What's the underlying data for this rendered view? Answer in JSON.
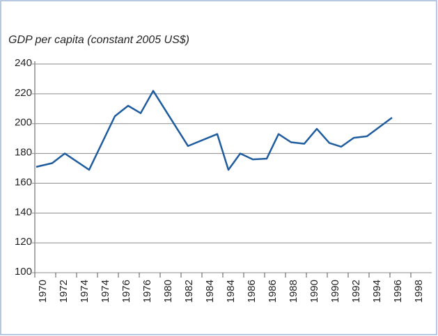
{
  "chart_data": {
    "type": "line",
    "title": "GDP per capita (constant 2005 US$)",
    "x": [
      1970.1,
      1971.25,
      1972.15,
      1973.9,
      1975.75,
      1976.7,
      1977.6,
      1978.5,
      1981,
      1983.1,
      1983.9,
      1984.75,
      1985.65,
      1986.65,
      1987.5,
      1988.4,
      1989.35,
      1990.25,
      1991.15,
      1992,
      1992.9,
      1993.85,
      1995.65
    ],
    "values": [
      171,
      173.5,
      180,
      169,
      205,
      212,
      207,
      222,
      185,
      193,
      169,
      180,
      176,
      176.5,
      193,
      187.5,
      186.5,
      196.5,
      187,
      184.5,
      190.5,
      191.5,
      204
    ],
    "color": "#1f5c9e",
    "xlim": [
      1970,
      1998.5
    ],
    "xticks": [
      {
        "value": 1970,
        "label": "1970"
      },
      {
        "value": 1971.5,
        "label": "1972"
      },
      {
        "value": 1973,
        "label": "1974"
      },
      {
        "value": 1974.5,
        "label": "1974"
      },
      {
        "value": 1976,
        "label": "1976"
      },
      {
        "value": 1977.5,
        "label": "1976"
      },
      {
        "value": 1979,
        "label": "1980"
      },
      {
        "value": 1980.5,
        "label": "1982"
      },
      {
        "value": 1982,
        "label": "1984"
      },
      {
        "value": 1983.5,
        "label": "1984"
      },
      {
        "value": 1985,
        "label": "1986"
      },
      {
        "value": 1986.5,
        "label": "1986"
      },
      {
        "value": 1988,
        "label": "1988"
      },
      {
        "value": 1989.5,
        "label": "1990"
      },
      {
        "value": 1991,
        "label": "1990"
      },
      {
        "value": 1992.5,
        "label": "1992"
      },
      {
        "value": 1994,
        "label": "1994"
      },
      {
        "value": 1995.5,
        "label": "1996"
      },
      {
        "value": 1997,
        "label": "1998"
      }
    ],
    "ylim": [
      100,
      240
    ],
    "yticks": [
      100,
      120,
      140,
      160,
      180,
      200,
      220,
      240
    ],
    "grid": true
  }
}
